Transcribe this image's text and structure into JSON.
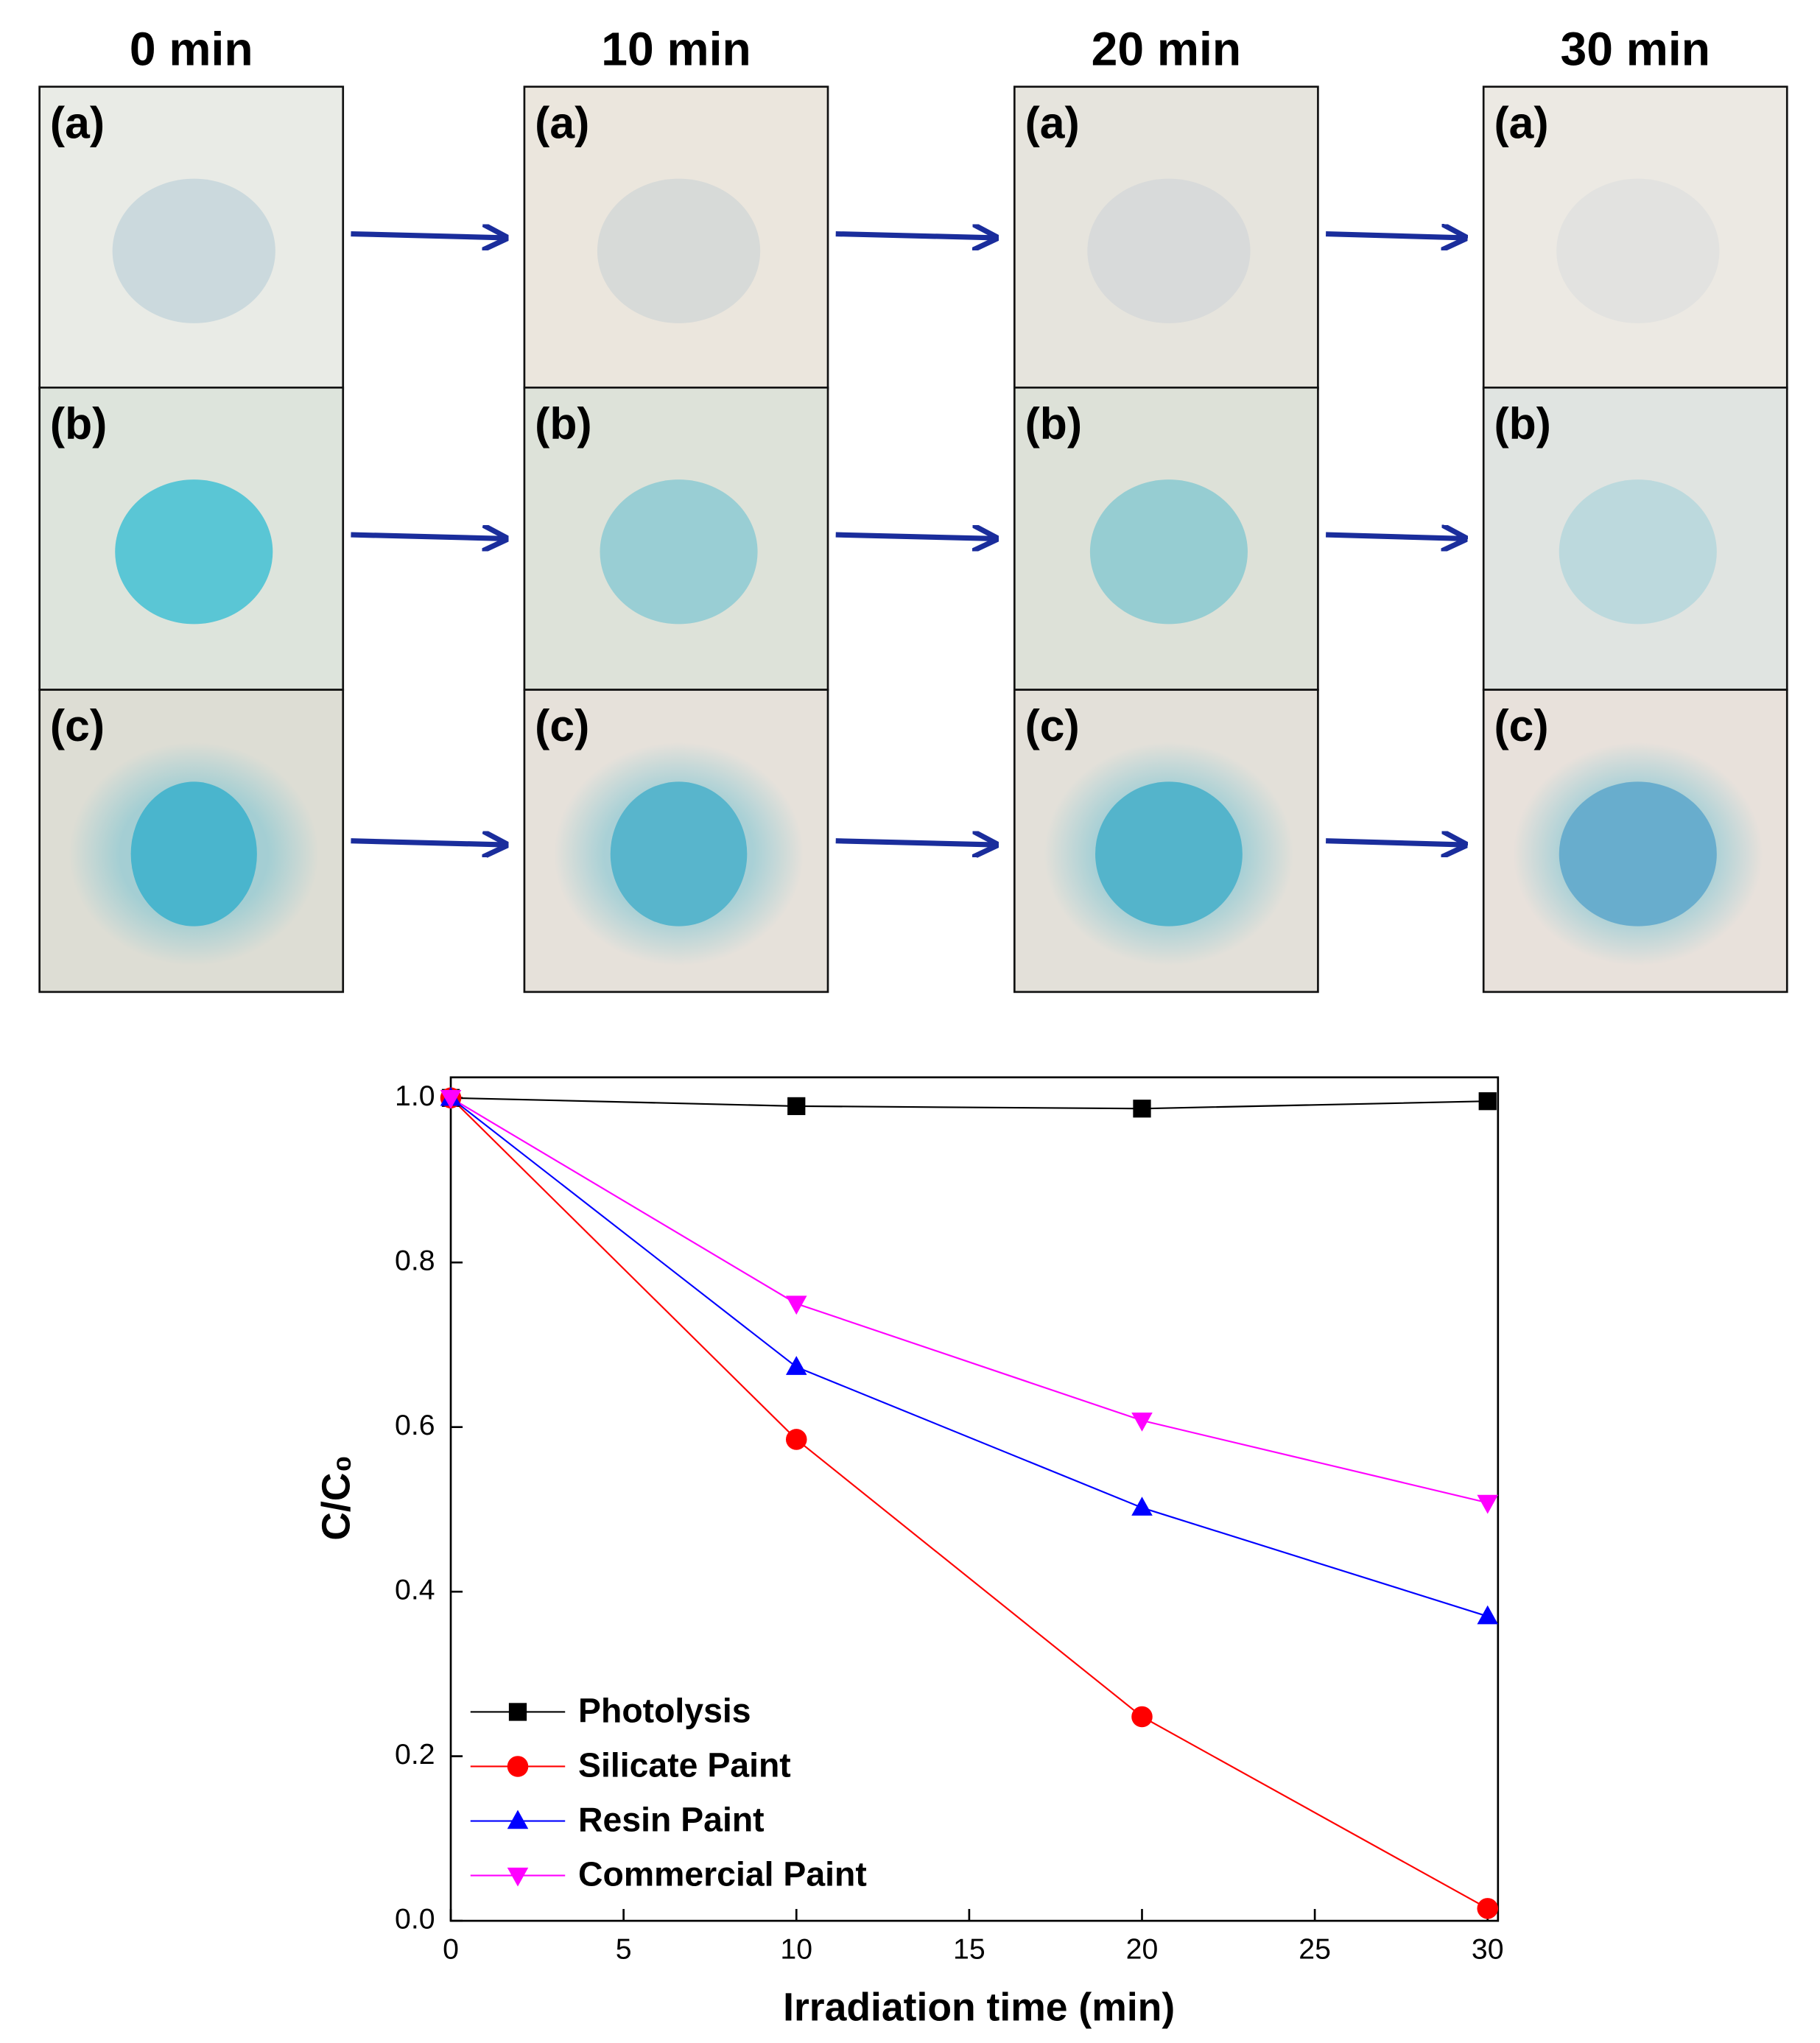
{
  "photos": {
    "columns": [
      "0 min",
      "10 min",
      "20 min",
      "30 min"
    ],
    "rows": [
      "(a)",
      "(b)",
      "(c)"
    ]
  },
  "chart_data": {
    "type": "line",
    "x_label": "Irradiation time (min)",
    "y_label": "C/C₀",
    "x": [
      0,
      10,
      20,
      30
    ],
    "series": [
      {
        "name": "Photolysis",
        "color": "#000000",
        "marker": "square",
        "values": [
          1.0,
          0.99,
          0.987,
          0.996
        ]
      },
      {
        "name": "Silicate Paint",
        "color": "#ff0000",
        "marker": "circle",
        "values": [
          1.0,
          0.585,
          0.248,
          0.015
        ]
      },
      {
        "name": "Resin Paint",
        "color": "#0000ff",
        "marker": "triangle-up",
        "values": [
          1.0,
          0.673,
          0.502,
          0.37
        ]
      },
      {
        "name": "Commercial Paint",
        "color": "#ff00ff",
        "marker": "triangle-down",
        "values": [
          1.0,
          0.75,
          0.608,
          0.508
        ]
      }
    ],
    "xlim": [
      0,
      30.3
    ],
    "ylim": [
      0,
      1.025
    ],
    "xticks": [
      0,
      5,
      10,
      15,
      20,
      25,
      30
    ],
    "yticks": [
      {
        "value": 0,
        "label": "0.0"
      },
      0.2,
      0.4,
      0.6,
      0.8,
      {
        "value": 1,
        "label": "1.0"
      }
    ],
    "legend": "lower-left"
  }
}
